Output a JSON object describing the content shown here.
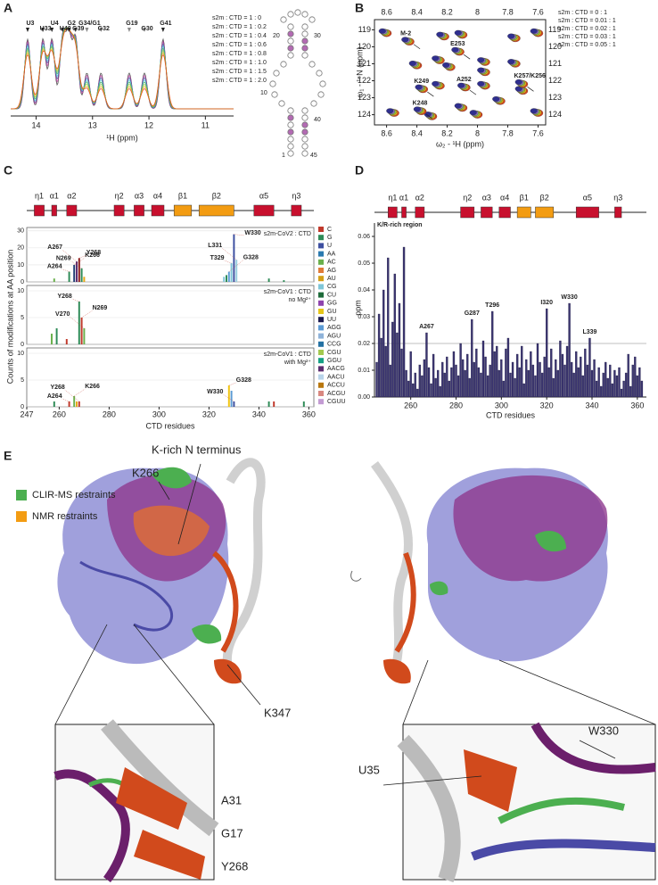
{
  "panel_a": {
    "letter": "A",
    "xlabel": "¹H (ppm)",
    "xlim": [
      14.45,
      10.5
    ],
    "xticks": [
      14,
      13,
      12,
      11
    ],
    "legend": [
      {
        "label": "s2m : CTD = 1 : 0",
        "color": "#333333"
      },
      {
        "label": "s2m : CTD = 1 : 0.2",
        "color": "#c0399f"
      },
      {
        "label": "s2m : CTD = 1 : 0.4",
        "color": "#3d4fa0"
      },
      {
        "label": "s2m : CTD = 1 : 0.6",
        "color": "#4fc3d9"
      },
      {
        "label": "s2m : CTD = 1 : 0.8",
        "color": "#3aa655"
      },
      {
        "label": "s2m : CTD = 1 : 1.0",
        "color": "#8cc63f"
      },
      {
        "label": "s2m : CTD = 1 : 1.5",
        "color": "#e6a817"
      },
      {
        "label": "s2m : CTD = 1 : 2.0",
        "color": "#e0401c"
      }
    ],
    "peaks": [
      {
        "text": "U3",
        "x": 14.15,
        "color": "#222222"
      },
      {
        "text": "U33",
        "x": 13.88,
        "color": "#222222"
      },
      {
        "text": "U4",
        "x": 13.72,
        "color": "#222222"
      },
      {
        "text": "U40",
        "x": 13.53,
        "color": "#222222"
      },
      {
        "text": "G2",
        "x": 13.42,
        "color": "#222222"
      },
      {
        "text": "G39",
        "x": 13.3,
        "color": "#222222"
      },
      {
        "text": "G34/G1",
        "x": 13.1,
        "color": "#888888"
      },
      {
        "text": "G32",
        "x": 12.85,
        "color": "#888888"
      },
      {
        "text": "G19",
        "x": 12.35,
        "color": "#888888"
      },
      {
        "text": "G30",
        "x": 12.08,
        "color": "#888888"
      },
      {
        "text": "G41",
        "x": 11.75,
        "color": "#222222"
      }
    ],
    "rna_labels": [
      "20",
      "30",
      "10",
      "40",
      "1",
      "45"
    ]
  },
  "panel_b": {
    "letter": "B",
    "xlabel": "ω₂ - ¹H (ppm)",
    "ylabel": "ω₁ - ¹⁵N (ppm)",
    "xlim": [
      8.68,
      7.55
    ],
    "ylim": [
      118.4,
      124.6
    ],
    "xticks": [
      8.6,
      8.4,
      8.2,
      8.0,
      7.8,
      7.6
    ],
    "yticks": [
      119,
      120,
      121,
      122,
      123,
      124
    ],
    "legend": [
      {
        "label": "s2m : CTD = 0 : 1",
        "color": "#e0401c"
      },
      {
        "label": "s2m : CTD = 0.01 : 1",
        "color": "#e6a817"
      },
      {
        "label": "s2m : CTD = 0.02 : 1",
        "color": "#8cc63f"
      },
      {
        "label": "s2m : CTD = 0.03 : 1",
        "color": "#8e6fc1"
      },
      {
        "label": "s2m : CTD = 0.05 : 1",
        "color": "#2f2f8f"
      }
    ],
    "peaks": [
      {
        "text": "M-2",
        "x": 8.45,
        "y": 119.7
      },
      {
        "text": "E253",
        "x": 8.12,
        "y": 120.3
      },
      {
        "text": "K249",
        "x": 8.36,
        "y": 122.5
      },
      {
        "text": "A252",
        "x": 8.08,
        "y": 122.4
      },
      {
        "text": "K257/K256",
        "x": 7.7,
        "y": 122.2
      },
      {
        "text": "K248",
        "x": 8.37,
        "y": 123.8
      }
    ],
    "spots": [
      {
        "x": 8.55,
        "y": 123.9
      },
      {
        "x": 8.4,
        "y": 121.1
      },
      {
        "x": 8.25,
        "y": 120.8
      },
      {
        "x": 8.18,
        "y": 121.2
      },
      {
        "x": 7.95,
        "y": 120.9
      },
      {
        "x": 7.75,
        "y": 121.0
      },
      {
        "x": 7.95,
        "y": 121.5
      },
      {
        "x": 8.25,
        "y": 122.3
      },
      {
        "x": 7.95,
        "y": 122.3
      },
      {
        "x": 7.7,
        "y": 122.6
      },
      {
        "x": 7.85,
        "y": 123.2
      },
      {
        "x": 8.0,
        "y": 124.0
      },
      {
        "x": 8.1,
        "y": 123.6
      },
      {
        "x": 8.22,
        "y": 119.4
      },
      {
        "x": 8.1,
        "y": 119.3
      },
      {
        "x": 7.75,
        "y": 119.5
      },
      {
        "x": 7.6,
        "y": 119.2
      },
      {
        "x": 8.6,
        "y": 119.2
      },
      {
        "x": 8.3,
        "y": 124.1
      },
      {
        "x": 7.6,
        "y": 123.9
      }
    ]
  },
  "panel_c": {
    "letter": "C",
    "ylabel": "Counts of modifications at AA position",
    "xlabel": "CTD residues",
    "xlim": [
      247,
      362
    ],
    "xticks": [
      247,
      260,
      280,
      300,
      320,
      340,
      360
    ],
    "topology": [
      {
        "label": "η1",
        "span": [
          250,
          254
        ],
        "color": "#c8102e"
      },
      {
        "label": "α1",
        "span": [
          257,
          259
        ],
        "color": "#c8102e"
      },
      {
        "label": "α2",
        "span": [
          263,
          267
        ],
        "color": "#c8102e"
      },
      {
        "label": "η2",
        "span": [
          282,
          286
        ],
        "color": "#c8102e"
      },
      {
        "label": "α3",
        "span": [
          290,
          294
        ],
        "color": "#c8102e"
      },
      {
        "label": "α4",
        "span": [
          297,
          302
        ],
        "color": "#c8102e"
      },
      {
        "label": "β1",
        "span": [
          306,
          313
        ],
        "color": "#f39c12"
      },
      {
        "label": "β2",
        "span": [
          316,
          330
        ],
        "color": "#f39c12"
      },
      {
        "label": "α5",
        "span": [
          338,
          346
        ],
        "color": "#c8102e"
      },
      {
        "label": "η3",
        "span": [
          353,
          357
        ],
        "color": "#c8102e"
      }
    ],
    "legend": [
      {
        "label": "C",
        "color": "#c0392b"
      },
      {
        "label": "G",
        "color": "#2e8b57"
      },
      {
        "label": "U",
        "color": "#3d4fa0"
      },
      {
        "label": "AA",
        "color": "#2a7ab0"
      },
      {
        "label": "AC",
        "color": "#6ab04c"
      },
      {
        "label": "AG",
        "color": "#e07b39"
      },
      {
        "label": "AU",
        "color": "#d4a017"
      },
      {
        "label": "CG",
        "color": "#7fc6d8"
      },
      {
        "label": "CU",
        "color": "#1e6b3a"
      },
      {
        "label": "GG",
        "color": "#8e44ad"
      },
      {
        "label": "GU",
        "color": "#e6c619"
      },
      {
        "label": "UU",
        "color": "#1b1b4f"
      },
      {
        "label": "AGG",
        "color": "#5b9bd5"
      },
      {
        "label": "AGU",
        "color": "#8fb3d9"
      },
      {
        "label": "CCG",
        "color": "#2471a3"
      },
      {
        "label": "CGU",
        "color": "#a3c94f"
      },
      {
        "label": "GGU",
        "color": "#16a085"
      },
      {
        "label": "AACG",
        "color": "#5b2c6f"
      },
      {
        "label": "AACU",
        "color": "#b8d4ea"
      },
      {
        "label": "ACCU",
        "color": "#b9770e"
      },
      {
        "label": "ACGU",
        "color": "#d98880"
      },
      {
        "label": "CGUU",
        "color": "#c39bd3"
      }
    ],
    "subplots": [
      {
        "labels": [
          "s2m-CoV2 : CTD"
        ],
        "ylim": [
          0,
          32
        ],
        "yticks": [
          0,
          10,
          20,
          30
        ],
        "bars": [
          {
            "x": 258,
            "value": 2,
            "color": "#6ab04c"
          },
          {
            "x": 264,
            "value": 6,
            "color": "#2e8b57"
          },
          {
            "x": 266,
            "value": 10,
            "color": "#1f3b73"
          },
          {
            "x": 267,
            "value": 12,
            "color": "#5b2c6f"
          },
          {
            "x": 268,
            "value": 14,
            "color": "#8b1a1a"
          },
          {
            "x": 269,
            "value": 8,
            "color": "#2e8b57"
          },
          {
            "x": 270,
            "value": 3,
            "color": "#e6a817"
          },
          {
            "x": 326,
            "value": 3,
            "color": "#7fc6d8"
          },
          {
            "x": 327,
            "value": 4,
            "color": "#2e8b57"
          },
          {
            "x": 328,
            "value": 6,
            "color": "#5b9bd5"
          },
          {
            "x": 329,
            "value": 11,
            "color": "#7fc6d8"
          },
          {
            "x": 330,
            "value": 28,
            "color": "#3d4fa0"
          },
          {
            "x": 331,
            "value": 13,
            "color": "#9ad0e0"
          },
          {
            "x": 344,
            "value": 2,
            "color": "#2e8b57"
          },
          {
            "x": 350,
            "value": 1,
            "color": "#2e8b57"
          }
        ],
        "peak_labels": [
          {
            "text": "A264",
            "x": 264
          },
          {
            "text": "K266",
            "x": 266
          },
          {
            "text": "A267",
            "x": 267
          },
          {
            "text": "Y268",
            "x": 268
          },
          {
            "text": "N269",
            "x": 269
          },
          {
            "text": "G328",
            "x": 328
          },
          {
            "text": "T329",
            "x": 329
          },
          {
            "text": "W330",
            "x": 330
          },
          {
            "text": "L331",
            "x": 331
          }
        ]
      },
      {
        "labels": [
          "s2m-CoV1 : CTD",
          "no Mg²⁺"
        ],
        "ylim": [
          0,
          11
        ],
        "yticks": [
          0,
          5,
          10
        ],
        "bars": [
          {
            "x": 257,
            "value": 2,
            "color": "#6ab04c"
          },
          {
            "x": 259,
            "value": 3,
            "color": "#2e8b57"
          },
          {
            "x": 263,
            "value": 1,
            "color": "#c0392b"
          },
          {
            "x": 268,
            "value": 8,
            "color": "#2e8b57"
          },
          {
            "x": 269,
            "value": 5,
            "color": "#c0392b"
          },
          {
            "x": 270,
            "value": 3,
            "color": "#6ab04c"
          }
        ],
        "peak_labels": [
          {
            "text": "Y268",
            "x": 268
          },
          {
            "text": "N269",
            "x": 269
          },
          {
            "text": "V270",
            "x": 270
          }
        ]
      },
      {
        "labels": [
          "s2m-CoV1 : CTD",
          "with Mg²⁺"
        ],
        "ylim": [
          0,
          11
        ],
        "yticks": [
          0,
          5,
          10
        ],
        "bars": [
          {
            "x": 258,
            "value": 1,
            "color": "#2e8b57"
          },
          {
            "x": 264,
            "value": 1,
            "color": "#c0392b"
          },
          {
            "x": 266,
            "value": 2,
            "color": "#6ab04c"
          },
          {
            "x": 267,
            "value": 1,
            "color": "#e6a817"
          },
          {
            "x": 268,
            "value": 1,
            "color": "#c0392b"
          },
          {
            "x": 328,
            "value": 4,
            "color": "#f1c40f"
          },
          {
            "x": 329,
            "value": 3,
            "color": "#5b9bd5"
          },
          {
            "x": 330,
            "value": 1,
            "color": "#3d4fa0"
          },
          {
            "x": 344,
            "value": 1,
            "color": "#2e8b57"
          },
          {
            "x": 346,
            "value": 1,
            "color": "#c0392b"
          },
          {
            "x": 358,
            "value": 1,
            "color": "#2e8b57"
          }
        ],
        "peak_labels": [
          {
            "text": "A264",
            "x": 264
          },
          {
            "text": "K266",
            "x": 266
          },
          {
            "text": "Y268",
            "x": 268
          },
          {
            "text": "G328",
            "x": 328
          },
          {
            "text": "W330",
            "x": 330
          }
        ]
      }
    ]
  },
  "panel_d": {
    "letter": "D",
    "ylabel": "ppm",
    "xlabel": "CTD residues",
    "annotation": "K/R-rich region",
    "threshold": 0.02,
    "topology": [
      {
        "label": "η1",
        "span": [
          250,
          254
        ],
        "color": "#c8102e"
      },
      {
        "label": "α1",
        "span": [
          256,
          258
        ],
        "color": "#c8102e"
      },
      {
        "label": "α2",
        "span": [
          262,
          266
        ],
        "color": "#c8102e"
      },
      {
        "label": "η2",
        "span": [
          282,
          288
        ],
        "color": "#c8102e"
      },
      {
        "label": "α3",
        "span": [
          291,
          296
        ],
        "color": "#c8102e"
      },
      {
        "label": "α4",
        "span": [
          299,
          304
        ],
        "color": "#c8102e"
      },
      {
        "label": "β1",
        "span": [
          307,
          313
        ],
        "color": "#f39c12"
      },
      {
        "label": "β2",
        "span": [
          315,
          323
        ],
        "color": "#f39c12"
      },
      {
        "label": "α5",
        "span": [
          333,
          343
        ],
        "color": "#c8102e"
      },
      {
        "label": "η3",
        "span": [
          350,
          353
        ],
        "color": "#c8102e"
      }
    ],
    "chart": {
      "type": "bar",
      "color": "#3b3570",
      "xlim": [
        244,
        364
      ],
      "ylim": [
        0,
        0.065
      ],
      "xticks": [
        260,
        280,
        300,
        320,
        340,
        360
      ],
      "yticks": [
        {
          "value": 0,
          "label": "0.00"
        },
        0.01,
        0.02,
        0.03,
        0.04,
        0.05,
        0.06
      ],
      "x": [
        245,
        246,
        247,
        248,
        249,
        250,
        251,
        252,
        253,
        254,
        255,
        256,
        257,
        258,
        259,
        260,
        261,
        262,
        263,
        264,
        265,
        266,
        267,
        268,
        269,
        270,
        271,
        272,
        273,
        274,
        275,
        276,
        277,
        278,
        279,
        280,
        281,
        282,
        283,
        284,
        285,
        286,
        287,
        288,
        289,
        290,
        291,
        292,
        293,
        294,
        295,
        296,
        297,
        298,
        299,
        300,
        301,
        302,
        303,
        304,
        305,
        306,
        307,
        308,
        309,
        310,
        311,
        312,
        313,
        314,
        315,
        316,
        317,
        318,
        319,
        320,
        321,
        322,
        323,
        324,
        325,
        326,
        327,
        328,
        329,
        330,
        331,
        332,
        333,
        334,
        335,
        336,
        337,
        338,
        339,
        340,
        341,
        342,
        343,
        344,
        345,
        346,
        347,
        348,
        349,
        350,
        351,
        352,
        353,
        354,
        355,
        356,
        357,
        358,
        359,
        360,
        361,
        362
      ],
      "values": [
        0.013,
        0.031,
        0.022,
        0.04,
        0.019,
        0.052,
        0.012,
        0.028,
        0.046,
        0.024,
        0.035,
        0.018,
        0.056,
        0.01,
        0.006,
        0.017,
        0.005,
        0.009,
        0.003,
        0.012,
        0.008,
        0.014,
        0.024,
        0.011,
        0.005,
        0.016,
        0.007,
        0.01,
        0.004,
        0.013,
        0.009,
        0.015,
        0.006,
        0.011,
        0.017,
        0.012,
        0.008,
        0.02,
        0.014,
        0.01,
        0.016,
        0.007,
        0.029,
        0.013,
        0.018,
        0.011,
        0.009,
        0.021,
        0.015,
        0.008,
        0.012,
        0.032,
        0.017,
        0.019,
        0.01,
        0.014,
        0.006,
        0.018,
        0.022,
        0.009,
        0.013,
        0.007,
        0.016,
        0.011,
        0.019,
        0.005,
        0.014,
        0.01,
        0.017,
        0.012,
        0.008,
        0.02,
        0.013,
        0.009,
        0.015,
        0.033,
        0.011,
        0.018,
        0.007,
        0.014,
        0.01,
        0.021,
        0.016,
        0.012,
        0.019,
        0.035,
        0.013,
        0.009,
        0.017,
        0.011,
        0.015,
        0.008,
        0.018,
        0.012,
        0.022,
        0.01,
        0.014,
        0.006,
        0.011,
        0.004,
        0.009,
        0.013,
        0.007,
        0.012,
        0.005,
        0.01,
        0.008,
        0.011,
        0.003,
        0.006,
        0.009,
        0.016,
        0.004,
        0.012,
        0.015,
        0.008,
        0.011,
        0.006
      ]
    },
    "peak_labels": [
      {
        "text": "A267",
        "x": 267
      },
      {
        "text": "G287",
        "x": 287
      },
      {
        "text": "T296",
        "x": 296
      },
      {
        "text": "I320",
        "x": 320
      },
      {
        "text": "W330",
        "x": 330
      },
      {
        "text": "L339",
        "x": 339
      }
    ]
  },
  "panel_e": {
    "letter": "E",
    "legend": [
      {
        "label": "CLIR-MS restraints",
        "color": "#4caf50"
      },
      {
        "label": "NMR restraints",
        "color": "#f39c12"
      }
    ],
    "labels": {
      "n_terminus": "K-rich N terminus",
      "k266": "K266",
      "k347": "K347",
      "a31": "A31",
      "g17": "G17",
      "y268": "Y268",
      "u35": "U35",
      "w330": "W330"
    }
  }
}
